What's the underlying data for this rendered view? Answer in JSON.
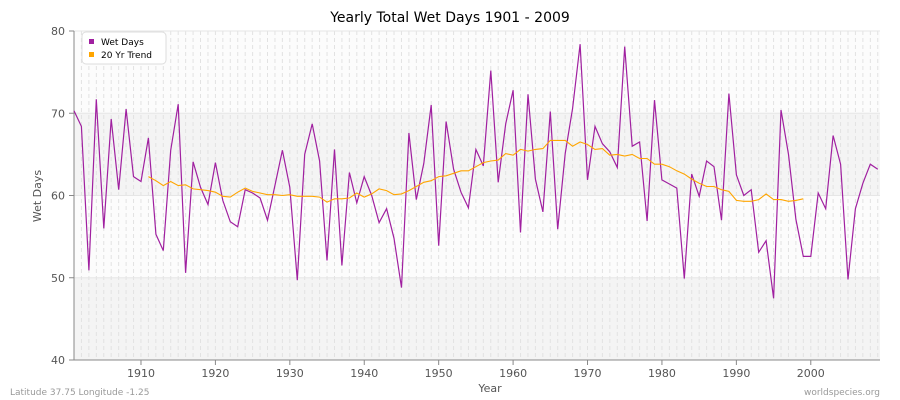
{
  "chart_data": {
    "type": "line",
    "title": "Yearly Total Wet Days 1901 - 2009",
    "xlabel": "Year",
    "ylabel": "Wet Days",
    "xlim": [
      1901,
      2009
    ],
    "ylim": [
      40,
      80
    ],
    "xticks": [
      1910,
      1920,
      1930,
      1940,
      1950,
      1960,
      1970,
      1980,
      1990,
      2000
    ],
    "yticks": [
      40,
      50,
      60,
      70,
      80
    ],
    "grid": true,
    "legend_position": "top-left",
    "series": [
      {
        "name": "Wet Days",
        "color": "#a020a0",
        "x_start": 1901,
        "values": [
          70.3,
          68.4,
          50.9,
          71.7,
          56.0,
          69.3,
          60.7,
          70.5,
          62.3,
          61.7,
          67.0,
          55.3,
          53.3,
          65.5,
          71.1,
          50.6,
          64.1,
          61.0,
          58.9,
          64.0,
          59.4,
          56.8,
          56.2,
          60.7,
          60.3,
          59.7,
          57.0,
          61.2,
          65.5,
          61.0,
          49.7,
          65.0,
          68.7,
          64.2,
          52.1,
          65.6,
          51.5,
          62.8,
          59.1,
          62.3,
          60.0,
          56.7,
          58.4,
          54.8,
          48.8,
          67.6,
          59.5,
          63.9,
          71.0,
          53.9,
          69.0,
          63.2,
          60.4,
          58.5,
          65.6,
          63.6,
          75.2,
          61.6,
          68.7,
          72.8,
          55.5,
          72.3,
          62.0,
          58.0,
          70.2,
          55.9,
          65.1,
          70.6,
          78.4,
          61.9,
          68.4,
          66.3,
          65.3,
          63.4,
          78.1,
          66.0,
          66.5,
          56.9,
          71.6,
          61.9,
          61.4,
          60.9,
          49.9,
          62.6,
          59.9,
          64.2,
          63.5,
          57.0,
          72.4,
          62.5,
          60.0,
          60.7,
          53.1,
          54.5,
          47.5,
          70.4,
          65.0,
          57.1,
          52.6,
          52.6,
          60.3,
          58.4,
          67.3,
          63.8,
          49.8,
          58.4,
          61.5,
          63.8,
          63.2
        ]
      },
      {
        "name": "20 Yr Trend",
        "color": "#ffa500",
        "x_start": 1911,
        "values": [
          62.3,
          61.8,
          61.2,
          61.7,
          61.2,
          61.3,
          60.8,
          60.7,
          60.6,
          60.4,
          59.9,
          59.8,
          60.4,
          60.9,
          60.5,
          60.3,
          60.1,
          60.1,
          60.0,
          60.1,
          59.9,
          59.9,
          59.9,
          59.8,
          59.2,
          59.6,
          59.6,
          59.7,
          60.3,
          59.8,
          60.2,
          60.8,
          60.6,
          60.1,
          60.2,
          60.6,
          61.1,
          61.6,
          61.8,
          62.3,
          62.4,
          62.7,
          63.0,
          63.0,
          63.5,
          64.0,
          64.2,
          64.3,
          65.1,
          64.9,
          65.6,
          65.4,
          65.6,
          65.7,
          66.7,
          66.7,
          66.7,
          66.0,
          66.5,
          66.2,
          65.6,
          65.7,
          64.9,
          65.0,
          64.8,
          65.0,
          64.5,
          64.5,
          63.8,
          63.8,
          63.5,
          63.0,
          62.6,
          62.0,
          61.5,
          61.1,
          61.1,
          60.7,
          60.5,
          59.4,
          59.3,
          59.3,
          59.5,
          60.2,
          59.5,
          59.5,
          59.3,
          59.4,
          59.6
        ]
      }
    ]
  },
  "footer": {
    "location": "Latitude 37.75 Longitude -1.25",
    "source": "worldspecies.org"
  }
}
